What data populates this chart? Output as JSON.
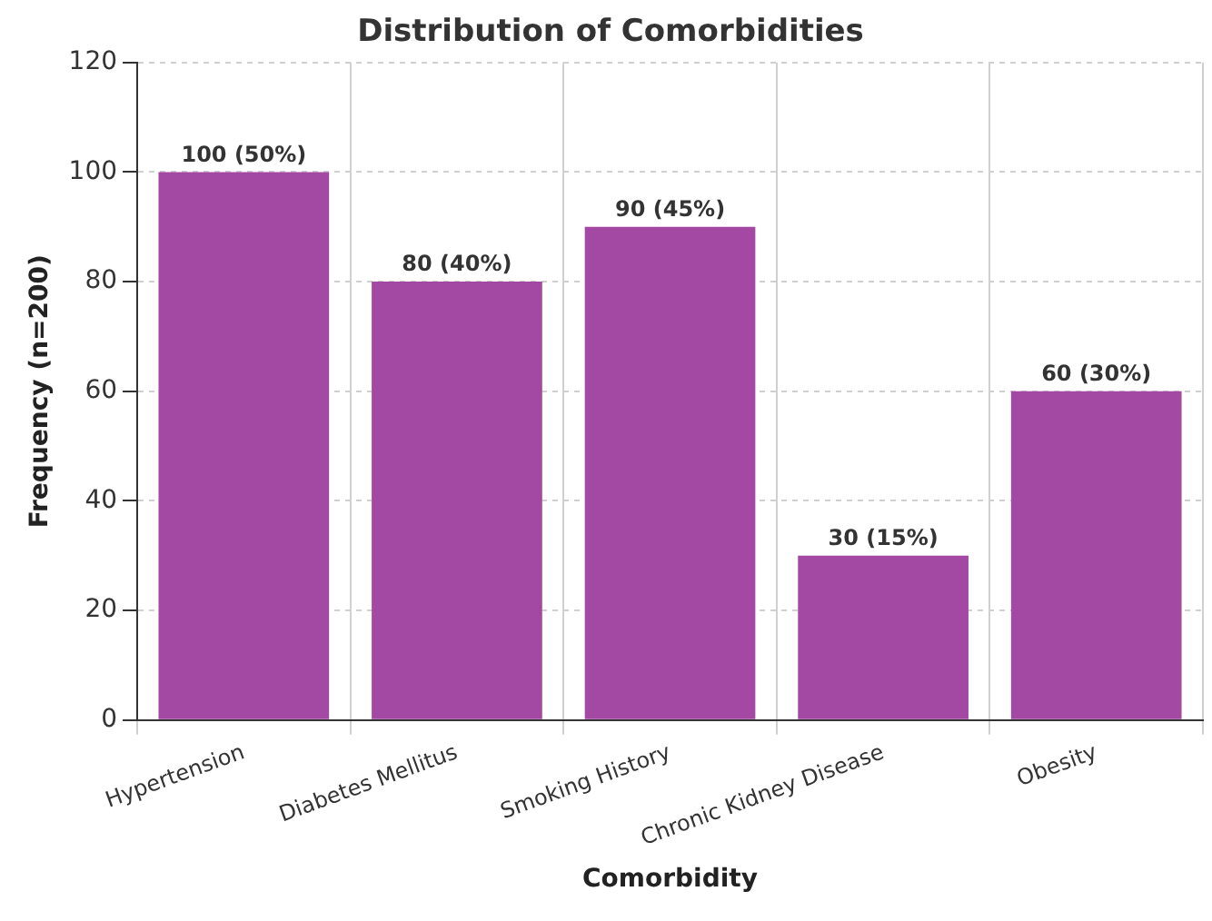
{
  "chart_data": {
    "type": "bar",
    "title": "Distribution of Comorbidities",
    "xlabel": "Comorbidity",
    "ylabel": "Frequency (n=200)",
    "categories": [
      "Hypertension",
      "Diabetes Mellitus",
      "Smoking History",
      "Chronic Kidney Disease",
      "Obesity"
    ],
    "values": [
      100,
      80,
      90,
      30,
      60
    ],
    "value_labels": [
      "100 (50%)",
      "80 (40%)",
      "90 (45%)",
      "30 (15%)",
      "60 (30%)"
    ],
    "color": "#a349a4",
    "ylim": [
      0,
      120
    ],
    "yticks": [
      0,
      20,
      40,
      60,
      80,
      100,
      120
    ],
    "grid": true,
    "legend": false
  }
}
